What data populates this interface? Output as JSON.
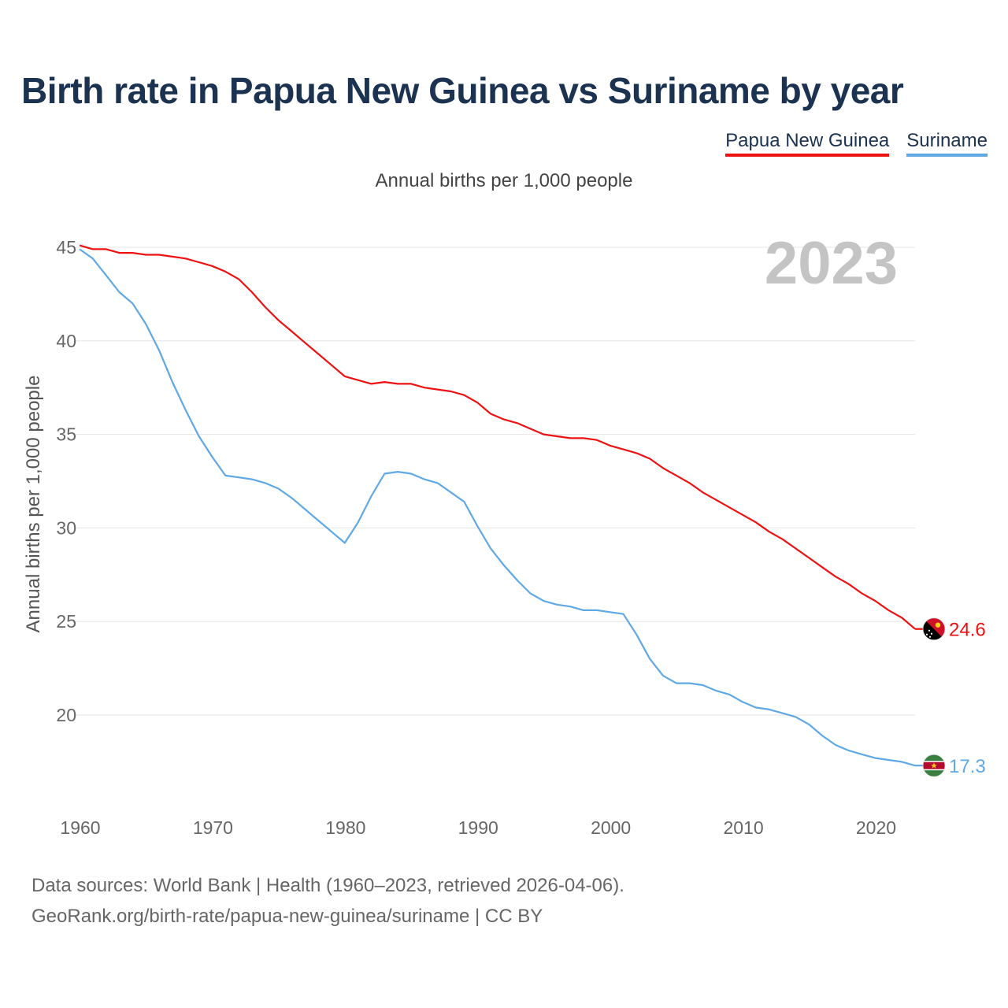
{
  "chart_data": {
    "type": "line",
    "title": "Birth rate in Papua New Guinea vs Suriname by year",
    "subtitle": "Annual births per 1,000 people",
    "ylabel": "Annual births per 1,000 people",
    "xlabel": "",
    "xlim": [
      1960,
      2023
    ],
    "ylim": [
      16,
      45.5
    ],
    "xticks": [
      1960,
      1970,
      1980,
      1990,
      2000,
      2010,
      2020
    ],
    "yticks": [
      20,
      25,
      30,
      35,
      40,
      45
    ],
    "grid": true,
    "legend_position": "top-right",
    "current_year": "2023",
    "x": [
      1960,
      1961,
      1962,
      1963,
      1964,
      1965,
      1966,
      1967,
      1968,
      1969,
      1970,
      1971,
      1972,
      1973,
      1974,
      1975,
      1976,
      1977,
      1978,
      1979,
      1980,
      1981,
      1982,
      1983,
      1984,
      1985,
      1986,
      1987,
      1988,
      1989,
      1990,
      1991,
      1992,
      1993,
      1994,
      1995,
      1996,
      1997,
      1998,
      1999,
      2000,
      2001,
      2002,
      2003,
      2004,
      2005,
      2006,
      2007,
      2008,
      2009,
      2010,
      2011,
      2012,
      2013,
      2014,
      2015,
      2016,
      2017,
      2018,
      2019,
      2020,
      2021,
      2022,
      2023
    ],
    "series": [
      {
        "name": "Papua New Guinea",
        "color": "#ee1111",
        "end_label": "24.6",
        "flag": "papua-new-guinea-flag",
        "values": [
          45.1,
          44.9,
          44.9,
          44.7,
          44.7,
          44.6,
          44.6,
          44.5,
          44.4,
          44.2,
          44.0,
          43.7,
          43.3,
          42.6,
          41.8,
          41.1,
          40.5,
          39.9,
          39.3,
          38.7,
          38.1,
          37.9,
          37.7,
          37.8,
          37.7,
          37.7,
          37.5,
          37.4,
          37.3,
          37.1,
          36.7,
          36.1,
          35.8,
          35.6,
          35.3,
          35.0,
          34.9,
          34.8,
          34.8,
          34.7,
          34.4,
          34.2,
          34.0,
          33.7,
          33.2,
          32.8,
          32.4,
          31.9,
          31.5,
          31.1,
          30.7,
          30.3,
          29.8,
          29.4,
          28.9,
          28.4,
          27.9,
          27.4,
          27.0,
          26.5,
          26.1,
          25.6,
          25.2,
          24.6
        ]
      },
      {
        "name": "Suriname",
        "color": "#5fa8e6",
        "end_label": "17.3",
        "flag": "suriname-flag",
        "values": [
          44.9,
          44.4,
          43.5,
          42.6,
          42.0,
          40.9,
          39.5,
          37.8,
          36.3,
          34.9,
          33.8,
          32.8,
          32.7,
          32.6,
          32.4,
          32.1,
          31.6,
          31.0,
          30.4,
          29.8,
          29.2,
          30.3,
          31.7,
          32.9,
          33.0,
          32.9,
          32.6,
          32.4,
          31.9,
          31.4,
          30.1,
          28.9,
          28.0,
          27.2,
          26.5,
          26.1,
          25.9,
          25.8,
          25.6,
          25.6,
          25.5,
          25.4,
          24.3,
          23.0,
          22.1,
          21.7,
          21.7,
          21.6,
          21.3,
          21.1,
          20.7,
          20.4,
          20.3,
          20.1,
          19.9,
          19.5,
          18.9,
          18.4,
          18.1,
          17.9,
          17.7,
          17.6,
          17.5,
          17.3
        ]
      }
    ]
  },
  "footer": {
    "source_line1": "Data sources: World Bank | Health (1960–2023, retrieved 2026-04-06).",
    "source_line2": "GeoRank.org/birth-rate/papua-new-guinea/suriname | CC BY"
  }
}
